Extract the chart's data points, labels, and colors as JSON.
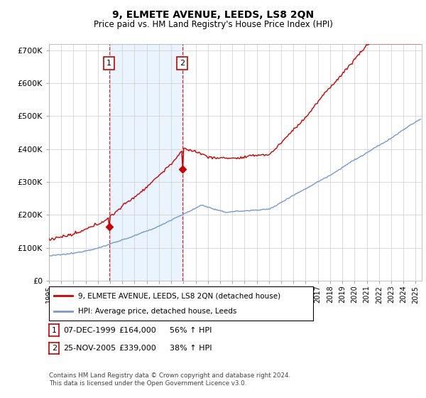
{
  "title": "9, ELMETE AVENUE, LEEDS, LS8 2QN",
  "subtitle": "Price paid vs. HM Land Registry's House Price Index (HPI)",
  "property_label": "9, ELMETE AVENUE, LEEDS, LS8 2QN (detached house)",
  "hpi_label": "HPI: Average price, detached house, Leeds",
  "property_color": "#cc0000",
  "hpi_color": "#7799cc",
  "shade_color": "#ddeeff",
  "background_color": "#ffffff",
  "ylim": [
    0,
    720000
  ],
  "yticks": [
    0,
    100000,
    200000,
    300000,
    400000,
    500000,
    600000,
    700000
  ],
  "ytick_labels": [
    "£0",
    "£100K",
    "£200K",
    "£300K",
    "£400K",
    "£500K",
    "£600K",
    "£700K"
  ],
  "xlim_start": 1995,
  "xlim_end": 2025.5,
  "purchase1_date": 1999.92,
  "purchase1_price": 164000,
  "purchase1_label": "1",
  "purchase2_date": 2005.9,
  "purchase2_price": 339000,
  "purchase2_label": "2",
  "footer_line1": "Contains HM Land Registry data © Crown copyright and database right 2024.",
  "footer_line2": "This data is licensed under the Open Government Licence v3.0.",
  "table_row1": [
    "1",
    "07-DEC-1999",
    "£164,000",
    "56% ↑ HPI"
  ],
  "table_row2": [
    "2",
    "25-NOV-2005",
    "£339,000",
    "38% ↑ HPI"
  ]
}
